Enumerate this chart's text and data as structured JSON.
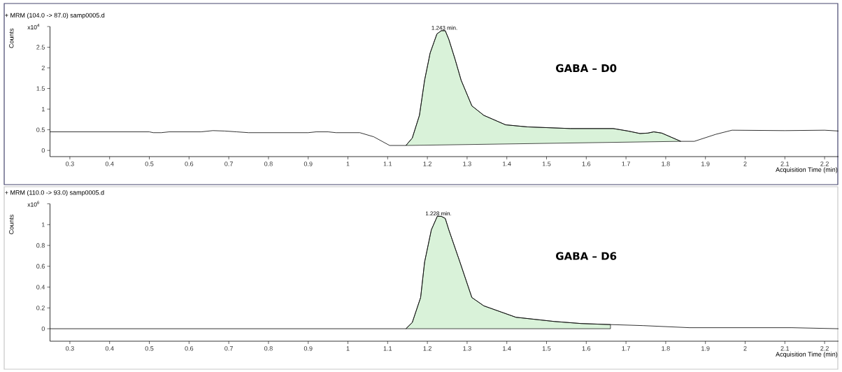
{
  "chart_data": [
    {
      "type": "line",
      "title": "+ MRM (104.0 -> 87.0) samp0005.d",
      "xlabel": "Acquisition Time (min)",
      "ylabel": "Counts",
      "xlim": [
        0.25,
        2.235
      ],
      "ylim": [
        -0.15,
        3
      ],
      "xticks": [
        0.3,
        0.4,
        0.5,
        0.6,
        0.7,
        0.8,
        0.9,
        1,
        1.1,
        1.2,
        1.3,
        1.4,
        1.5,
        1.6,
        1.7,
        1.8,
        1.9,
        2,
        2.1,
        2.2
      ],
      "yticks": [
        0,
        0.5,
        1,
        1.5,
        2,
        2.5,
        {
          "value": 3,
          "label": null
        }
      ],
      "annotations": [
        "x10$^{4}$",
        {
          "text": "1.243 min.",
          "x": 1.243,
          "y": 2.9
        },
        "GABA – D0"
      ],
      "series": [
        {
          "type": "area",
          "color": "#d9f2d9",
          "x": [
            1.146,
            1.162,
            1.18,
            1.193,
            1.207,
            1.224,
            1.235,
            1.245,
            1.254,
            1.27,
            1.285,
            1.312,
            1.342,
            1.397,
            1.452,
            1.56,
            1.668,
            1.705,
            1.735,
            1.755,
            1.77,
            1.79,
            1.838
          ],
          "values": [
            0.12,
            0.3,
            0.85,
            1.7,
            2.36,
            2.82,
            2.9,
            2.9,
            2.69,
            2.2,
            1.7,
            1.08,
            0.85,
            0.62,
            0.57,
            0.53,
            0.53,
            0.47,
            0.41,
            0.42,
            0.45,
            0.42,
            0.22
          ]
        },
        {
          "color": "#000000",
          "x": [
            0.25,
            0.35,
            0.5,
            0.51,
            0.53,
            0.55,
            0.63,
            0.66,
            0.69,
            0.72,
            0.75,
            0.9,
            0.92,
            0.95,
            0.97,
            1.03,
            1.065,
            1.105,
            1.146,
            1.162,
            1.18,
            1.193,
            1.207,
            1.224,
            1.235,
            1.245,
            1.254,
            1.27,
            1.285,
            1.312,
            1.342,
            1.397,
            1.452,
            1.56,
            1.668,
            1.705,
            1.735,
            1.755,
            1.77,
            1.79,
            1.838,
            1.872,
            1.926,
            1.967,
            2.1,
            2.2,
            2.235
          ],
          "values": [
            0.45,
            0.45,
            0.45,
            0.43,
            0.43,
            0.45,
            0.45,
            0.48,
            0.47,
            0.45,
            0.43,
            0.43,
            0.45,
            0.45,
            0.43,
            0.43,
            0.33,
            0.12,
            0.12,
            0.3,
            0.85,
            1.7,
            2.36,
            2.82,
            2.9,
            2.9,
            2.69,
            2.2,
            1.7,
            1.08,
            0.85,
            0.62,
            0.57,
            0.53,
            0.53,
            0.47,
            0.41,
            0.42,
            0.45,
            0.42,
            0.22,
            0.22,
            0.39,
            0.49,
            0.48,
            0.49,
            0.47
          ]
        }
      ]
    },
    {
      "type": "line",
      "title": "+ MRM (110.0 -> 93.0) samp0005.d",
      "xlabel": "Acquisition Time (min)",
      "ylabel": "Counts",
      "xlim": [
        0.25,
        2.235
      ],
      "ylim": [
        -0.12,
        1.2
      ],
      "xticks": [
        0.3,
        0.4,
        0.5,
        0.6,
        0.7,
        0.8,
        0.9,
        1,
        1.1,
        1.2,
        1.3,
        1.4,
        1.5,
        1.6,
        1.7,
        1.8,
        1.9,
        2,
        2.1,
        2.2
      ],
      "yticks": [
        0,
        0.2,
        0.4,
        0.6,
        0.8,
        1,
        {
          "value": 1.2,
          "label": null
        }
      ],
      "annotations": [
        "x10$^{6}$",
        {
          "text": "1.228 min.",
          "x": 1.228,
          "y": 1.08
        },
        "GABA – D6"
      ],
      "series": [
        {
          "type": "area",
          "color": "#d9f2d9",
          "x": [
            1.146,
            1.162,
            1.183,
            1.193,
            1.21,
            1.225,
            1.235,
            1.245,
            1.254,
            1.282,
            1.312,
            1.342,
            1.423,
            1.519,
            1.587,
            1.661,
            1.661
          ],
          "values": [
            0,
            0.06,
            0.3,
            0.64,
            0.95,
            1.08,
            1.08,
            1.06,
            0.95,
            0.64,
            0.3,
            0.22,
            0.11,
            0.07,
            0.05,
            0.04,
            0
          ]
        },
        {
          "color": "#000000",
          "x": [
            0.25,
            1.146,
            1.162,
            1.183,
            1.193,
            1.21,
            1.225,
            1.235,
            1.245,
            1.254,
            1.282,
            1.312,
            1.342,
            1.423,
            1.519,
            1.587,
            1.661,
            1.743,
            1.86,
            2.117,
            2.235
          ],
          "values": [
            0,
            0,
            0.06,
            0.3,
            0.64,
            0.95,
            1.08,
            1.08,
            1.06,
            0.95,
            0.64,
            0.3,
            0.22,
            0.11,
            0.07,
            0.05,
            0.04,
            0.03,
            0.01,
            0.01,
            0
          ]
        }
      ]
    }
  ]
}
